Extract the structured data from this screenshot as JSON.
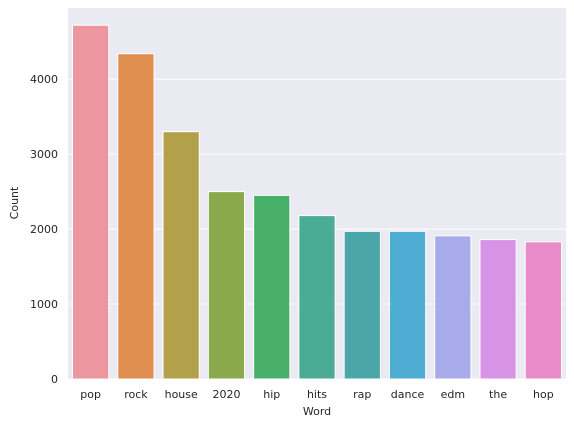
{
  "chart_data": {
    "type": "bar",
    "title": "",
    "xlabel": "Word",
    "ylabel": "Count",
    "categories": [
      "pop",
      "rock",
      "house",
      "2020",
      "hip",
      "hits",
      "rap",
      "dance",
      "edm",
      "the",
      "hop"
    ],
    "values": [
      4720,
      4340,
      3300,
      2500,
      2450,
      2180,
      1970,
      1970,
      1910,
      1860,
      1830
    ],
    "ylim": [
      0,
      4950
    ],
    "yticks": [
      0,
      1000,
      2000,
      3000,
      4000
    ],
    "ytick_labels": [
      "0",
      "1000",
      "2000",
      "3000",
      "4000"
    ],
    "grid": true,
    "legend": "none",
    "colors": {
      "background": "#eaeaf2",
      "grid": "#ffffff",
      "bar_edge": "#ffffff",
      "bars": [
        "#ec96a0",
        "#e08e4f",
        "#b3a04b",
        "#8aa94a",
        "#48b068",
        "#4aac95",
        "#4aa6a8",
        "#4fadd4",
        "#a8abe9",
        "#d793e6",
        "#e98ac9"
      ]
    }
  }
}
